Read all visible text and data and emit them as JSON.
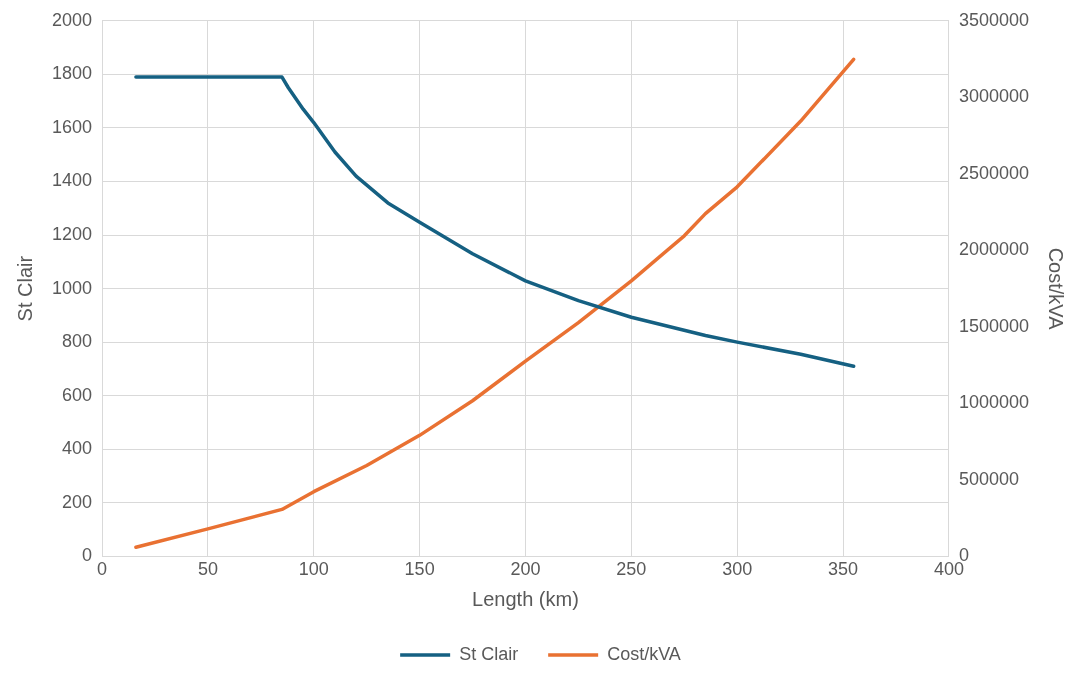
{
  "chart_data": {
    "type": "line",
    "xlabel": "Length (km)",
    "ylabel": "St Clair",
    "y2label": "Cost/kVA",
    "xlim": [
      0,
      400
    ],
    "xticks": [
      0,
      50,
      100,
      150,
      200,
      250,
      300,
      350,
      400
    ],
    "ylim": [
      0,
      2000
    ],
    "yticks": [
      0,
      200,
      400,
      600,
      800,
      1000,
      1200,
      1400,
      1600,
      1800,
      2000
    ],
    "y2lim": [
      0,
      3500000
    ],
    "y2ticks": [
      0,
      500000,
      1000000,
      1500000,
      2000000,
      2500000,
      3000000,
      3500000
    ],
    "grid": true,
    "legend": "bottom",
    "marker": "none",
    "series": [
      {
        "name": "St Clair",
        "color": "#156082",
        "x": [
          16,
          50,
          85,
          88,
          95,
          100,
          110,
          120,
          135,
          150,
          175,
          200,
          225,
          250,
          285,
          300,
          330,
          355
        ],
        "values": [
          1790,
          1790,
          1790,
          1750,
          1670,
          1620,
          1510,
          1420,
          1320,
          1248,
          1130,
          1029,
          955,
          893,
          825,
          800,
          755,
          710
        ]
      },
      {
        "name": "Cost/kVA",
        "color": "#e97132",
        "axis": "y2",
        "x": [
          16,
          50,
          85,
          100,
          125,
          150,
          175,
          200,
          225,
          250,
          275,
          285,
          300,
          330,
          355
        ],
        "values": [
          60000,
          180000,
          307000,
          423000,
          594000,
          791000,
          1017000,
          1276000,
          1528000,
          1801000,
          2095000,
          2240000,
          2415000,
          2845000,
          3248000
        ]
      }
    ]
  }
}
